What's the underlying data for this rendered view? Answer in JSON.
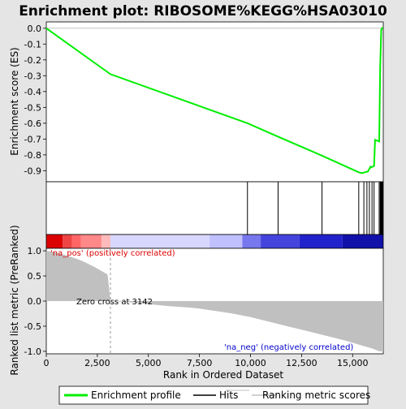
{
  "chart_data": {
    "type": "line",
    "title": "Enrichment plot: RIBOSOME%KEGG%HSA03010",
    "xlabel": "Rank in Ordered Dataset",
    "ylabel_top": "Enrichment score (ES)",
    "ylabel_bottom": "Ranked list metric (PreRanked)",
    "xlim": [
      0,
      16500
    ],
    "x_ticks": [
      0,
      2500,
      5000,
      7500,
      10000,
      12500,
      15000
    ],
    "x_tick_labels": [
      "0",
      "2,500",
      "5,000",
      "7,500",
      "10,000",
      "12,500",
      "15,000"
    ],
    "es_ylim": [
      -0.97,
      0.04
    ],
    "es_ticks": [
      0.0,
      -0.1,
      -0.2,
      -0.3,
      -0.4,
      -0.5,
      -0.6,
      -0.7,
      -0.8,
      -0.9
    ],
    "es_tick_labels": [
      "0.0",
      "-0.1",
      "-0.2",
      "-0.3",
      "-0.4",
      "-0.5",
      "-0.6",
      "-0.7",
      "-0.8",
      "-0.9"
    ],
    "metric_ylim": [
      -1.05,
      1.05
    ],
    "metric_ticks": [
      1.0,
      0.5,
      0.0,
      -0.5,
      -1.0
    ],
    "metric_tick_labels": [
      "1.0",
      "0.5",
      "0.0",
      "-0.5",
      "-1.0"
    ],
    "series": [
      {
        "name": "Enrichment profile",
        "color": "#00ee00",
        "x": [
          0,
          3142,
          9850,
          11350,
          13500,
          15300,
          15450,
          15600,
          15750,
          15870,
          15900,
          16050,
          16100,
          16300,
          16350,
          16400,
          16440,
          16480
        ],
        "y": [
          0.0,
          -0.29,
          -0.6,
          -0.685,
          -0.805,
          -0.91,
          -0.915,
          -0.91,
          -0.905,
          -0.875,
          -0.88,
          -0.87,
          -0.705,
          -0.715,
          -0.25,
          -0.01,
          0.0,
          0.005
        ]
      }
    ],
    "hits": [
      9850,
      11350,
      13500,
      15300,
      15550,
      15700,
      15820,
      15950,
      16050,
      16300,
      16350,
      16380,
      16400,
      16430,
      16460,
      16480
    ],
    "metric_curve": {
      "x": [
        0,
        300,
        600,
        900,
        1200,
        1500,
        1800,
        2100,
        2400,
        2700,
        3000,
        3142,
        4000,
        5000,
        6000,
        7000,
        7500,
        8000,
        8500,
        9000,
        9500,
        10000,
        10500,
        11000,
        11500,
        12000,
        12500,
        13000,
        13500,
        14000,
        14500,
        15000,
        15500,
        16000,
        16300,
        16500
      ],
      "y": [
        1.0,
        0.98,
        0.95,
        0.92,
        0.88,
        0.84,
        0.79,
        0.73,
        0.67,
        0.6,
        0.53,
        0.0,
        -0.02,
        -0.06,
        -0.1,
        -0.13,
        -0.15,
        -0.18,
        -0.21,
        -0.24,
        -0.28,
        -0.32,
        -0.37,
        -0.42,
        -0.47,
        -0.52,
        -0.57,
        -0.62,
        -0.67,
        -0.72,
        -0.77,
        -0.83,
        -0.89,
        -0.95,
        -1.0,
        -1.0
      ]
    },
    "zero_cross": 3142,
    "zero_cross_label": "Zero cross at 3142",
    "pos_label": "'na_pos' (positively correlated)",
    "neg_label": "'na_neg' (negatively correlated)",
    "colors": {
      "pos_label": "#dd0000",
      "neg_label": "#0000cc",
      "profile": "#00ee00",
      "metric_fill": "#c0c0c0"
    },
    "heat_segments": [
      {
        "x0": 0,
        "x1": 800,
        "color": "#dd0000"
      },
      {
        "x0": 800,
        "x1": 1250,
        "color": "#ee4444"
      },
      {
        "x0": 1250,
        "x1": 1700,
        "color": "#ff6666"
      },
      {
        "x0": 1700,
        "x1": 2700,
        "color": "#ff8888"
      },
      {
        "x0": 2700,
        "x1": 3142,
        "color": "#ffbbbb"
      },
      {
        "x0": 3142,
        "x1": 8000,
        "color": "#d8d8ff"
      },
      {
        "x0": 8000,
        "x1": 9600,
        "color": "#c0c0ff"
      },
      {
        "x0": 9600,
        "x1": 10500,
        "color": "#7777ee"
      },
      {
        "x0": 10500,
        "x1": 12400,
        "color": "#4444dd"
      },
      {
        "x0": 12400,
        "x1": 14500,
        "color": "#2222cc"
      },
      {
        "x0": 14500,
        "x1": 16500,
        "color": "#1111aa"
      }
    ],
    "legend": [
      "Enrichment profile",
      "Hits",
      "Ranking metric scores"
    ]
  }
}
